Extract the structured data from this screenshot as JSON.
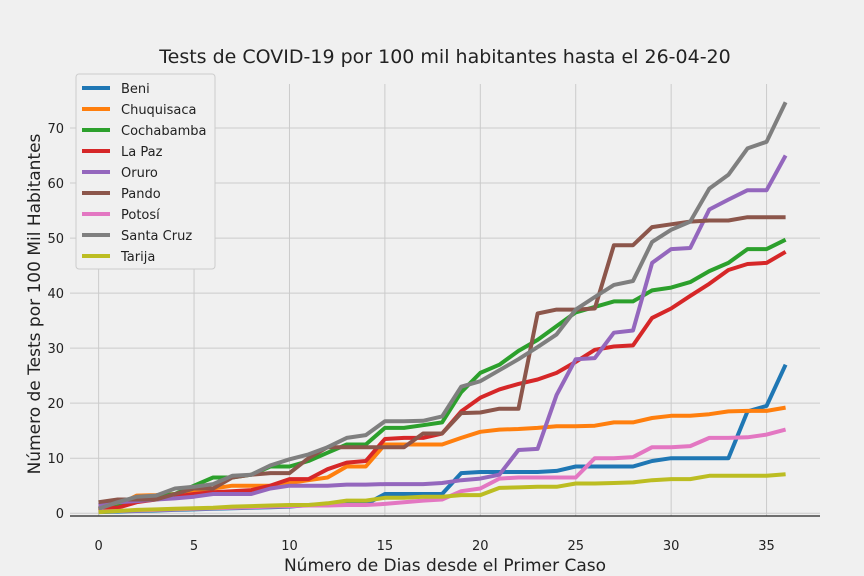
{
  "chart_data": {
    "type": "line",
    "title": "Tests de COVID-19 por 100 mil habitantes hasta el 26-04-20",
    "xlabel": "Número de Dias desde el Primer Caso",
    "ylabel": "Número de Tests por 100 Mil Habitantes",
    "xlim": [
      -1.5,
      37.8
    ],
    "ylim": [
      -0.5,
      78
    ],
    "xticks": [
      0,
      5,
      10,
      15,
      20,
      25,
      30,
      35
    ],
    "yticks": [
      0,
      10,
      20,
      30,
      40,
      50,
      60,
      70
    ],
    "grid": true,
    "legend_position": "top-left",
    "x": [
      0,
      1,
      2,
      3,
      4,
      5,
      6,
      7,
      8,
      9,
      10,
      11,
      12,
      13,
      14,
      15,
      16,
      17,
      18,
      19,
      20,
      21,
      22,
      23,
      24,
      25,
      26,
      27,
      28,
      29,
      30,
      31,
      32,
      33,
      34,
      35,
      36
    ],
    "series": [
      {
        "name": "Beni",
        "color": "#1f77b4",
        "values": [
          0.2,
          0.3,
          0.4,
          0.5,
          0.6,
          0.7,
          0.8,
          0.9,
          1.0,
          1.1,
          1.2,
          1.5,
          1.6,
          1.6,
          1.6,
          3.5,
          3.5,
          3.5,
          3.5,
          7.3,
          7.5,
          7.5,
          7.5,
          7.5,
          7.7,
          8.5,
          8.5,
          8.5,
          8.5,
          9.5,
          10.0,
          10.0,
          10.0,
          10.0,
          18.5,
          19.5,
          27.0
        ]
      },
      {
        "name": "Chuquisaca",
        "color": "#ff7f0e",
        "values": [
          0.5,
          1.5,
          3.2,
          3.3,
          3.5,
          3.8,
          4.5,
          5.0,
          5.0,
          5.0,
          5.5,
          6.0,
          6.5,
          8.5,
          8.5,
          12.5,
          12.5,
          12.5,
          12.5,
          13.7,
          14.8,
          15.2,
          15.3,
          15.5,
          15.8,
          15.8,
          15.9,
          16.5,
          16.5,
          17.3,
          17.7,
          17.7,
          18.0,
          18.5,
          18.6,
          18.6,
          19.2
        ]
      },
      {
        "name": "Cochabamba",
        "color": "#2ca02c",
        "values": [
          0.8,
          1.2,
          2.5,
          3.0,
          3.5,
          5.0,
          6.5,
          6.5,
          7.0,
          8.5,
          8.5,
          9.5,
          11.0,
          12.5,
          12.5,
          15.5,
          15.5,
          16.0,
          16.5,
          22.0,
          25.5,
          27.0,
          29.5,
          31.5,
          34.0,
          36.5,
          37.5,
          38.5,
          38.5,
          40.5,
          41.0,
          42.0,
          44.0,
          45.5,
          48.0,
          48.0,
          49.7
        ]
      },
      {
        "name": "La Paz",
        "color": "#d62728",
        "values": [
          1.0,
          1.0,
          2.0,
          2.5,
          3.0,
          3.5,
          3.8,
          4.0,
          4.2,
          5.0,
          6.2,
          6.2,
          8.0,
          9.2,
          9.5,
          13.5,
          13.7,
          13.7,
          14.5,
          18.5,
          21.0,
          22.5,
          23.5,
          24.3,
          25.5,
          27.5,
          29.7,
          30.3,
          30.5,
          35.5,
          37.2,
          39.5,
          41.7,
          44.2,
          45.3,
          45.5,
          47.5
        ]
      },
      {
        "name": "Oruro",
        "color": "#9467bd",
        "values": [
          1.5,
          2.0,
          2.2,
          2.5,
          2.7,
          3.0,
          3.5,
          3.5,
          3.5,
          4.5,
          5.0,
          5.0,
          5.0,
          5.2,
          5.2,
          5.3,
          5.3,
          5.3,
          5.5,
          6.0,
          6.3,
          7.0,
          11.5,
          11.7,
          21.5,
          28.0,
          28.2,
          32.8,
          33.2,
          45.5,
          48.0,
          48.2,
          55.2,
          57.0,
          58.7,
          58.7,
          65.0
        ]
      },
      {
        "name": "Pando",
        "color": "#8c564b",
        "values": [
          2.0,
          2.5,
          2.5,
          2.5,
          3.5,
          4.5,
          4.5,
          6.5,
          7.0,
          7.3,
          7.3,
          10.0,
          12.0,
          12.0,
          12.0,
          12.0,
          12.0,
          14.5,
          14.5,
          18.2,
          18.3,
          19.0,
          19.0,
          36.3,
          37.0,
          37.0,
          37.2,
          48.7,
          48.7,
          52.0,
          52.5,
          53.0,
          53.2,
          53.2,
          53.8,
          53.8,
          53.8
        ]
      },
      {
        "name": "Potosí",
        "color": "#e377c2",
        "values": [
          0.3,
          0.4,
          0.5,
          0.6,
          0.7,
          0.8,
          0.9,
          1.0,
          1.1,
          1.2,
          1.3,
          1.4,
          1.4,
          1.5,
          1.5,
          1.7,
          2.0,
          2.3,
          2.5,
          4.0,
          4.5,
          6.3,
          6.5,
          6.5,
          6.5,
          6.5,
          10.0,
          10.0,
          10.2,
          12.0,
          12.0,
          12.2,
          13.7,
          13.7,
          13.8,
          14.3,
          15.2
        ]
      },
      {
        "name": "Santa Cruz",
        "color": "#7f7f7f",
        "values": [
          0.8,
          2.0,
          3.0,
          3.2,
          4.5,
          4.8,
          5.3,
          6.8,
          7.0,
          8.7,
          9.8,
          10.7,
          12.0,
          13.7,
          14.2,
          16.7,
          16.7,
          16.8,
          17.6,
          23.0,
          24.0,
          26.0,
          28.0,
          30.2,
          32.5,
          37.0,
          39.3,
          41.5,
          42.2,
          49.3,
          51.5,
          53.0,
          59.0,
          61.5,
          66.3,
          67.5,
          74.7
        ]
      },
      {
        "name": "Tarija",
        "color": "#bcbd22",
        "values": [
          0.2,
          0.4,
          0.6,
          0.7,
          0.8,
          0.9,
          1.0,
          1.2,
          1.3,
          1.4,
          1.5,
          1.5,
          1.8,
          2.3,
          2.3,
          2.8,
          2.8,
          3.0,
          3.0,
          3.3,
          3.3,
          4.6,
          4.7,
          4.8,
          4.8,
          5.4,
          5.4,
          5.5,
          5.6,
          6.0,
          6.2,
          6.2,
          6.8,
          6.8,
          6.8,
          6.8,
          7.1
        ]
      }
    ]
  }
}
